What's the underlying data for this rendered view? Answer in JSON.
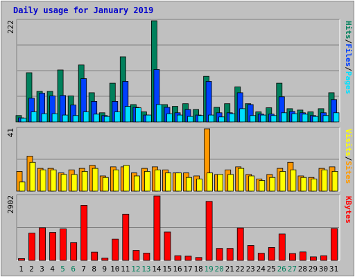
{
  "chart_data": [
    {
      "type": "bar",
      "title": "Daily usage for January 2019",
      "panel": "pages-files-hits",
      "ymax_label": "222",
      "legend": [
        "Pages",
        "Files",
        "Hits"
      ],
      "legend_separator": "/",
      "categories": [
        "1",
        "2",
        "3",
        "4",
        "5",
        "6",
        "7",
        "8",
        "9",
        "10",
        "11",
        "12",
        "13",
        "14",
        "15",
        "16",
        "17",
        "18",
        "19",
        "20",
        "21",
        "22",
        "23",
        "24",
        "25",
        "26",
        "27",
        "28",
        "29",
        "30",
        "31"
      ],
      "weekend_days": [
        "5",
        "6",
        "12",
        "13",
        "19",
        "20",
        "26",
        "27"
      ],
      "ylim": [
        0,
        222
      ],
      "series": [
        {
          "name": "Hits",
          "color": "#00805c",
          "values": [
            14,
            108,
            67,
            67,
            114,
            57,
            125,
            64,
            20,
            85,
            143,
            38,
            22,
            222,
            38,
            34,
            40,
            27,
            100,
            32,
            40,
            77,
            40,
            22,
            31,
            85,
            29,
            26,
            22,
            29,
            64
          ]
        },
        {
          "name": "Files",
          "color": "#0040ff",
          "values": [
            9,
            52,
            63,
            57,
            58,
            37,
            95,
            45,
            14,
            45,
            89,
            32,
            15,
            115,
            32,
            20,
            27,
            15,
            89,
            20,
            20,
            64,
            38,
            17,
            17,
            55,
            23,
            20,
            14,
            20,
            49
          ]
        },
        {
          "name": "Pages",
          "color": "#00e0ff",
          "values": [
            8,
            22,
            18,
            18,
            15,
            14,
            22,
            17,
            12,
            22,
            34,
            31,
            15,
            38,
            18,
            15,
            12,
            14,
            15,
            11,
            18,
            29,
            14,
            15,
            14,
            20,
            18,
            17,
            12,
            14,
            20
          ]
        }
      ]
    },
    {
      "type": "bar",
      "panel": "sites-visits",
      "ymax_label": "41",
      "legend": [
        "Sites",
        "Visits"
      ],
      "legend_separator": "/",
      "categories": [
        "1",
        "2",
        "3",
        "4",
        "5",
        "6",
        "7",
        "8",
        "9",
        "10",
        "11",
        "12",
        "13",
        "14",
        "15",
        "16",
        "17",
        "18",
        "19",
        "20",
        "21",
        "22",
        "23",
        "24",
        "25",
        "26",
        "27",
        "28",
        "29",
        "30",
        "31"
      ],
      "ylim": [
        0,
        41
      ],
      "series": [
        {
          "name": "Visits",
          "color": "#ff9900",
          "values": [
            13,
            23,
            15,
            15,
            12,
            14,
            15,
            17,
            10,
            16,
            16,
            12,
            15,
            16,
            14,
            12,
            12,
            10,
            41,
            11,
            14,
            16,
            11,
            8,
            11,
            15,
            19,
            10,
            9,
            15,
            16
          ]
        },
        {
          "name": "Sites",
          "color": "#ffff00",
          "values": [
            6,
            19,
            14,
            14,
            11,
            11,
            13,
            15,
            9,
            14,
            17,
            10,
            13,
            14,
            12,
            12,
            9,
            8,
            12,
            11,
            11,
            15,
            10,
            7,
            9,
            13,
            14,
            9,
            8,
            14,
            13
          ]
        }
      ]
    },
    {
      "type": "bar",
      "panel": "kbytes",
      "ymax_label": "2902",
      "legend": [
        "KBytes"
      ],
      "categories": [
        "1",
        "2",
        "3",
        "4",
        "5",
        "6",
        "7",
        "8",
        "9",
        "10",
        "11",
        "12",
        "13",
        "14",
        "15",
        "16",
        "17",
        "18",
        "19",
        "20",
        "21",
        "22",
        "23",
        "24",
        "25",
        "26",
        "27",
        "28",
        "29",
        "30",
        "31"
      ],
      "ylim": [
        0,
        2902
      ],
      "series": [
        {
          "name": "KBytes",
          "color": "#ff0000",
          "values": [
            80,
            1230,
            1470,
            1260,
            1420,
            800,
            2480,
            370,
            100,
            960,
            2080,
            450,
            330,
            2902,
            1280,
            210,
            190,
            130,
            2660,
            540,
            540,
            1460,
            670,
            320,
            580,
            1190,
            310,
            380,
            160,
            210,
            1440
          ]
        }
      ]
    }
  ]
}
